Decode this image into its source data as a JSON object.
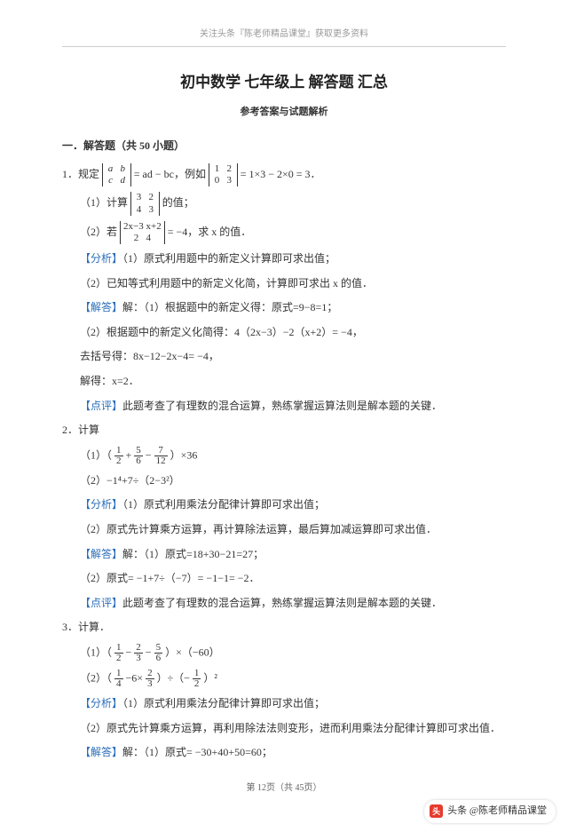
{
  "header": "关注头条『陈老师精品课堂』获取更多资料",
  "main_title": "初中数学 七年级上 解答题 汇总",
  "sub_title": "参考答案与试题解析",
  "section_header": "一．解答题（共 50 小题）",
  "q1": {
    "stem_prefix": "1．规定",
    "det_def": {
      "r1": [
        "a",
        "b"
      ],
      "r2": [
        "c",
        "d"
      ]
    },
    "stem_mid": " = ad − bc，例如",
    "det_ex": {
      "r1": [
        "1",
        "2"
      ],
      "r2": [
        "0",
        "3"
      ]
    },
    "stem_suffix": " = 1×3 − 2×0 = 3．",
    "p1_prefix": "（1）计算",
    "det1": {
      "r1": [
        "3",
        "2"
      ],
      "r2": [
        "4",
        "3"
      ]
    },
    "p1_suffix": "的值；",
    "p2_prefix": "（2）若",
    "det2": {
      "r1": [
        "2x−3",
        "x+2"
      ],
      "r2": [
        "2",
        "4"
      ]
    },
    "p2_suffix": " = −4，求 x 的值．",
    "analysis_label": "【分析】",
    "analysis1": "（1）原式利用题中的新定义计算即可求出值；",
    "analysis2": "（2）已知等式利用题中的新定义化简，计算即可求出 x 的值．",
    "answer_label": "【解答】",
    "answer1": "解：（1）根据题中的新定义得：原式=9−8=1；",
    "answer2": "（2）根据题中的新定义化简得：4（2x−3）−2（x+2）= −4，",
    "answer3": "去括号得：8x−12−2x−4= −4，",
    "answer4": "解得：x=2．",
    "comment_label": "【点评】",
    "comment": "此题考查了有理数的混合运算，熟练掌握运算法则是解本题的关键．"
  },
  "q2": {
    "header": "2．计算",
    "p1_prefix": "（1）（",
    "frac1": {
      "num": "1",
      "den": "2"
    },
    "plus": "+",
    "frac2": {
      "num": "5",
      "den": "6"
    },
    "minus": "−",
    "frac3": {
      "num": "7",
      "den": "12"
    },
    "p1_suffix": "）×36",
    "p2": "（2）−1⁴+7÷（2−3²）",
    "analysis_label": "【分析】",
    "analysis1": "（1）原式利用乘法分配律计算即可求出值；",
    "analysis2": "（2）原式先计算乘方运算，再计算除法运算，最后算加减运算即可求出值．",
    "answer_label": "【解答】",
    "answer1": "解：（1）原式=18+30−21=27；",
    "answer2": "（2）原式= −1+7÷（−7）= −1−1= −2．",
    "comment_label": "【点评】",
    "comment": "此题考查了有理数的混合运算，熟练掌握运算法则是解本题的关键．"
  },
  "q3": {
    "header": "3．计算．",
    "p1_prefix": "（1）（",
    "frac1": {
      "num": "1",
      "den": "2"
    },
    "minus1": "−",
    "frac2": {
      "num": "2",
      "den": "3"
    },
    "minus2": "−",
    "frac3": {
      "num": "5",
      "den": "6"
    },
    "p1_suffix": "）×（−60）",
    "p2_prefix": "（2）（",
    "frac4": {
      "num": "1",
      "den": "4"
    },
    "mid2a": "−6×",
    "frac5": {
      "num": "2",
      "den": "3"
    },
    "mid2b": "）÷（−",
    "frac6": {
      "num": "1",
      "den": "2"
    },
    "p2_suffix": "）²",
    "analysis_label": "【分析】",
    "analysis1": "（1）原式利用乘法分配律计算即可求出值；",
    "analysis2": "（2）原式先计算乘方运算，再利用除法法则变形，进而利用乘法分配律计算即可求出值．",
    "answer_label": "【解答】",
    "answer1": "解：（1）原式= −30+40+50=60；"
  },
  "footer": "第 12页（共 45页）",
  "watermark": {
    "logo": "头",
    "text": "头条 @陈老师精品课堂"
  },
  "colors": {
    "tag_color": "#2a6db8",
    "text_color": "#333333",
    "header_color": "#999999",
    "bg": "#ffffff"
  }
}
